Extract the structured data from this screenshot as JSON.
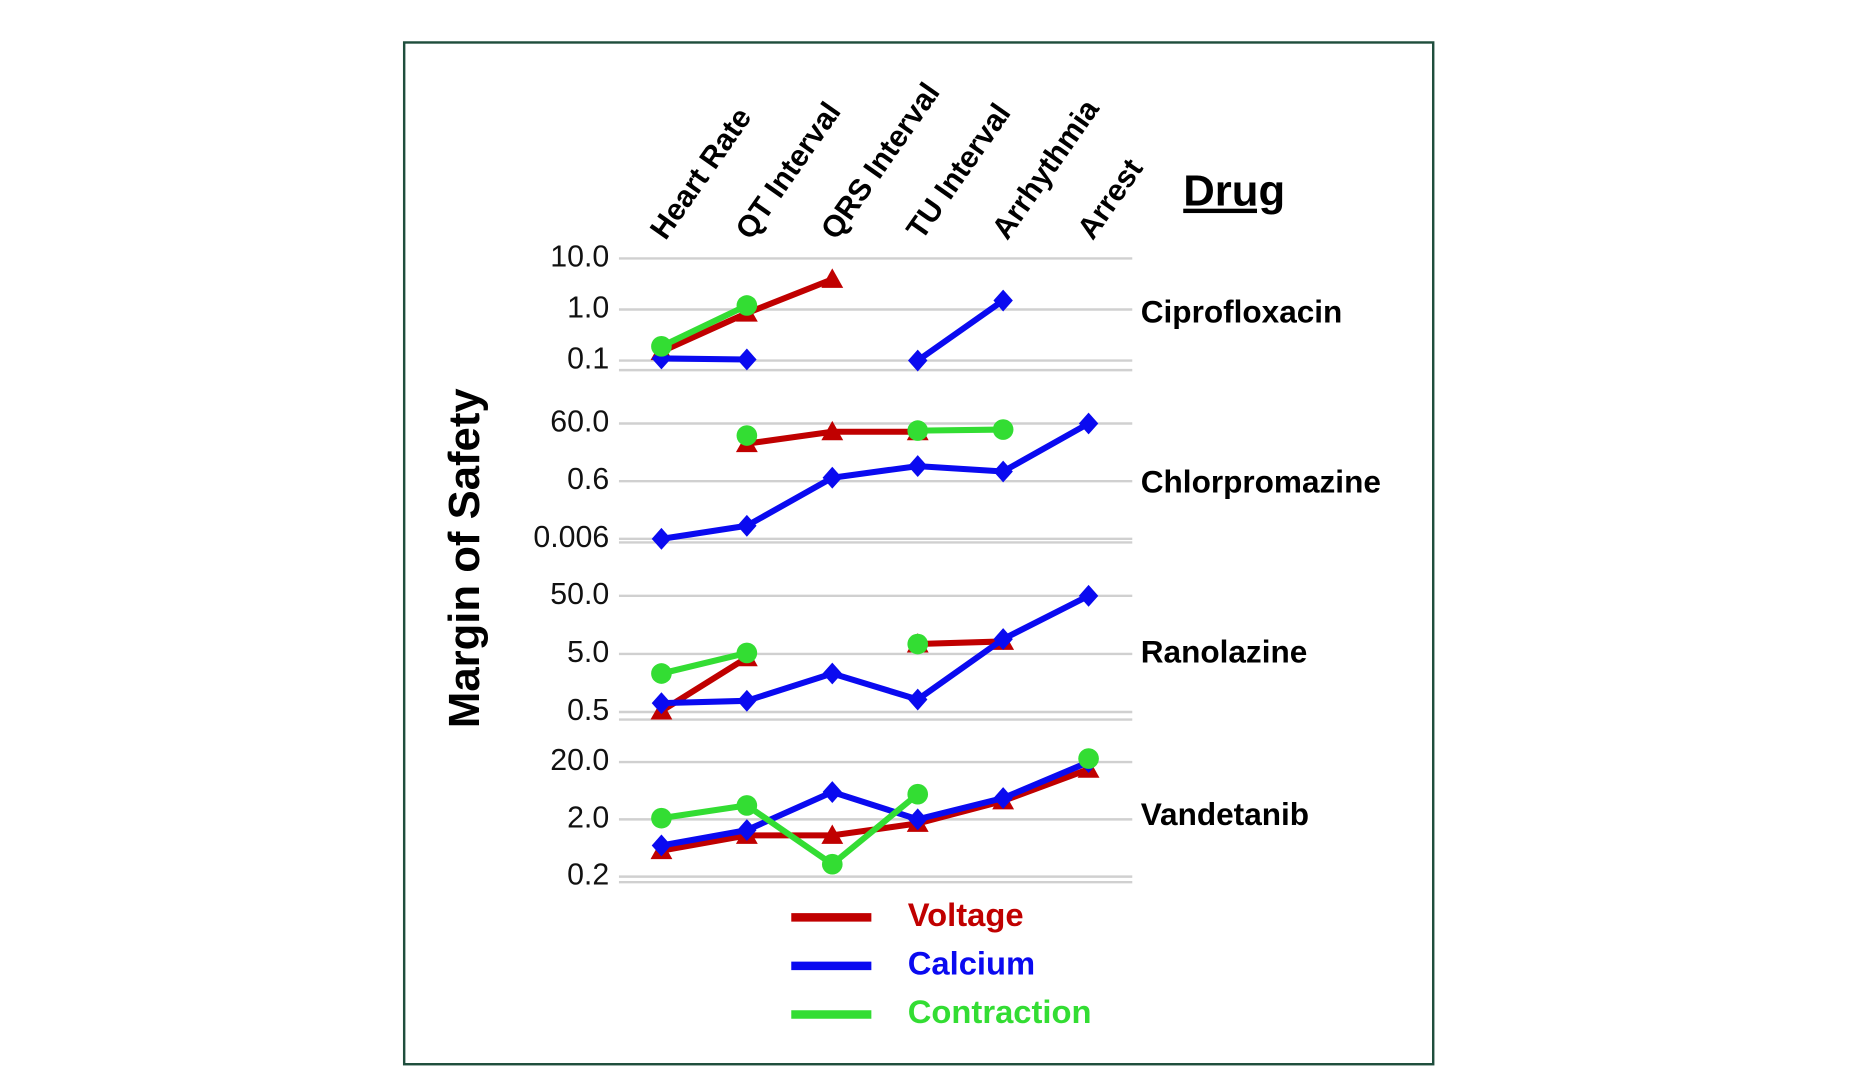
{
  "chart_data": {
    "type": "line",
    "log_scale": true,
    "grid": true,
    "y_label": "Margin of Safety",
    "panel_heading": "Drug",
    "categories": [
      "Heart Rate",
      "QT Interval",
      "QRS Interval",
      "TU Interval",
      "Arrhythmia",
      "Arrest"
    ],
    "series": [
      {
        "name": "Voltage",
        "color": "#c00000",
        "marker": "triangle"
      },
      {
        "name": "Calcium",
        "color": "#0a0af0",
        "marker": "diamond"
      },
      {
        "name": "Contraction",
        "color": "#33dd33",
        "marker": "circle"
      }
    ],
    "panels": [
      {
        "name": "Ciprofloxacin",
        "ylim": [
          0.065,
          10
        ],
        "yticks": [
          {
            "value": 10,
            "label": "10.0"
          },
          {
            "value": 1,
            "label": "1.0"
          },
          0.1
        ],
        "values": [
          [
            0.15,
            0.85,
            3.9,
            null,
            null,
            null
          ],
          [
            0.11,
            0.105,
            null,
            0.1,
            1.5,
            null
          ],
          [
            0.19,
            1.2,
            null,
            null,
            null,
            null
          ]
        ]
      },
      {
        "name": "Chlorpromazine",
        "ylim": [
          0.0045,
          60
        ],
        "yticks": [
          {
            "value": 60,
            "label": "60.0"
          },
          0.6,
          0.006
        ],
        "values": [
          [
            null,
            12,
            31,
            31,
            null,
            null
          ],
          [
            0.006,
            0.017,
            0.79,
            2.0,
            1.3,
            60
          ],
          [
            null,
            23,
            null,
            34,
            37,
            null
          ]
        ]
      },
      {
        "name": "Ranolazine",
        "ylim": [
          0.37,
          50
        ],
        "yticks": [
          {
            "value": 50,
            "label": "50.0"
          },
          {
            "value": 5,
            "label": "5.0"
          },
          0.5
        ],
        "values": [
          [
            0.52,
            4.3,
            null,
            7.4,
            8.2,
            null
          ],
          [
            0.71,
            0.78,
            2.3,
            0.82,
            9,
            50
          ],
          [
            2.3,
            5.2,
            null,
            7.4,
            null,
            null
          ]
        ]
      },
      {
        "name": "Vandetanib",
        "ylim": [
          0.16,
          20
        ],
        "yticks": [
          {
            "value": 20,
            "label": "20.0"
          },
          {
            "value": 2,
            "label": "2.0"
          },
          0.2
        ],
        "values": [
          [
            0.57,
            1.05,
            1.05,
            1.7,
            4.2,
            15
          ],
          [
            0.7,
            1.3,
            6,
            2,
            4.7,
            20
          ],
          [
            2.1,
            3.5,
            0.33,
            5.5,
            null,
            23
          ]
        ]
      }
    ]
  }
}
